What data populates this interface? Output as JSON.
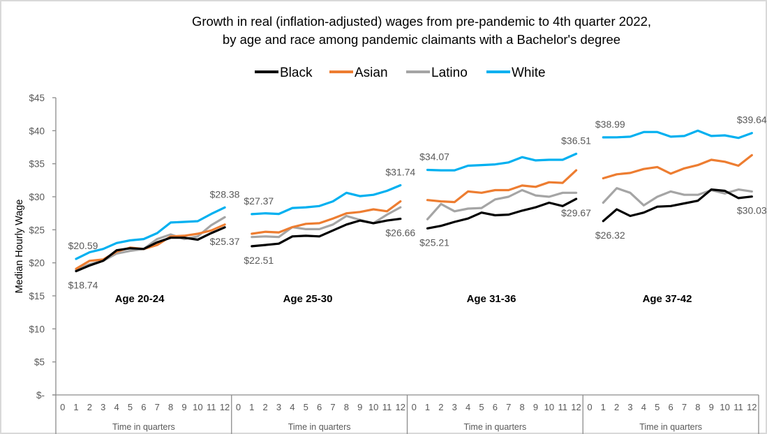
{
  "chart_data": {
    "type": "line",
    "title": "Growth in real (inflation-adjusted) wages from pre-pandemic to 4th quarter 2022,",
    "subtitle": "by age and race among pandemic claimants with a Bachelor's degree",
    "ylabel": "Median Hourly Wage",
    "xlabel": "Time in quarters",
    "ylim": [
      0,
      45
    ],
    "yticks": [
      0,
      5,
      10,
      15,
      20,
      25,
      30,
      35,
      40,
      45
    ],
    "ytick_labels": [
      "$-",
      "$5",
      "$10",
      "$15",
      "$20",
      "$25",
      "$30",
      "$35",
      "$40",
      "$45"
    ],
    "x_categories": [
      "0",
      "1",
      "2",
      "3",
      "4",
      "5",
      "6",
      "7",
      "8",
      "9",
      "10",
      "11",
      "12"
    ],
    "x_data_start_category": 1,
    "grid": false,
    "legend_position": "top",
    "legend": [
      {
        "name": "Black",
        "color": "#000000"
      },
      {
        "name": "Asian",
        "color": "#ED7D31"
      },
      {
        "name": "Latino",
        "color": "#A5A5A5"
      },
      {
        "name": "White",
        "color": "#00B0F0"
      }
    ],
    "panels": [
      {
        "label": "Age 20-24",
        "series": [
          {
            "name": "Black",
            "values": [
              18.74,
              19.6,
              20.3,
              21.9,
              22.2,
              22.1,
              23.1,
              23.8,
              23.8,
              23.5,
              24.5,
              25.37
            ]
          },
          {
            "name": "Asian",
            "values": [
              19.1,
              20.3,
              20.5,
              21.7,
              22.3,
              22.1,
              22.7,
              24.0,
              24.1,
              24.4,
              24.9,
              25.8
            ]
          },
          {
            "name": "Latino",
            "values": [
              18.9,
              19.8,
              20.3,
              21.4,
              21.8,
              22.1,
              23.6,
              24.3,
              23.6,
              24.0,
              25.7,
              26.9
            ]
          },
          {
            "name": "White",
            "values": [
              20.59,
              21.6,
              22.1,
              23.0,
              23.4,
              23.6,
              24.5,
              26.1,
              26.2,
              26.3,
              27.4,
              28.38
            ]
          }
        ],
        "data_labels": [
          {
            "text": "$20.59",
            "series": "White",
            "point": "first",
            "pos": "above"
          },
          {
            "text": "$18.74",
            "series": "Black",
            "point": "first",
            "pos": "below"
          },
          {
            "text": "$28.38",
            "series": "White",
            "point": "last",
            "pos": "above"
          },
          {
            "text": "$25.37",
            "series": "Black",
            "point": "last",
            "pos": "below"
          }
        ]
      },
      {
        "label": "Age 25-30",
        "series": [
          {
            "name": "Black",
            "values": [
              22.51,
              22.7,
              22.9,
              24.0,
              24.1,
              24.0,
              24.9,
              25.8,
              26.4,
              26.0,
              26.4,
              26.66
            ]
          },
          {
            "name": "Asian",
            "values": [
              24.4,
              24.7,
              24.6,
              25.4,
              25.9,
              26.0,
              26.7,
              27.5,
              27.7,
              28.1,
              27.8,
              29.3
            ]
          },
          {
            "name": "Latino",
            "values": [
              23.9,
              24.0,
              23.9,
              25.4,
              25.1,
              25.1,
              25.8,
              27.1,
              26.5,
              26.0,
              27.3,
              28.4
            ]
          },
          {
            "name": "White",
            "values": [
              27.37,
              27.5,
              27.4,
              28.3,
              28.4,
              28.6,
              29.3,
              30.6,
              30.1,
              30.3,
              30.9,
              31.74
            ]
          }
        ],
        "data_labels": [
          {
            "text": "$27.37",
            "series": "White",
            "point": "first",
            "pos": "above"
          },
          {
            "text": "$22.51",
            "series": "Black",
            "point": "first",
            "pos": "below"
          },
          {
            "text": "$31.74",
            "series": "White",
            "point": "last",
            "pos": "above"
          },
          {
            "text": "$26.66",
            "series": "Black",
            "point": "last",
            "pos": "below"
          }
        ]
      },
      {
        "label": "Age 31-36",
        "series": [
          {
            "name": "Black",
            "values": [
              25.21,
              25.6,
              26.2,
              26.7,
              27.6,
              27.2,
              27.3,
              27.9,
              28.4,
              29.1,
              28.6,
              29.67
            ]
          },
          {
            "name": "Asian",
            "values": [
              29.5,
              29.3,
              29.2,
              30.8,
              30.6,
              31.0,
              31.0,
              31.7,
              31.5,
              32.2,
              32.1,
              34.0
            ]
          },
          {
            "name": "Latino",
            "values": [
              26.6,
              28.9,
              27.8,
              28.2,
              28.3,
              29.6,
              30.0,
              31.0,
              30.2,
              30.0,
              30.6,
              30.6
            ]
          },
          {
            "name": "White",
            "values": [
              34.07,
              34.0,
              34.0,
              34.7,
              34.8,
              34.9,
              35.2,
              36.0,
              35.5,
              35.6,
              35.6,
              36.51
            ]
          }
        ],
        "data_labels": [
          {
            "text": "$34.07",
            "series": "White",
            "point": "first",
            "pos": "above"
          },
          {
            "text": "$25.21",
            "series": "Black",
            "point": "first",
            "pos": "below"
          },
          {
            "text": "$36.51",
            "series": "White",
            "point": "last",
            "pos": "above"
          },
          {
            "text": "$29.67",
            "series": "Black",
            "point": "last",
            "pos": "below"
          }
        ]
      },
      {
        "label": "Age 37-42",
        "series": [
          {
            "name": "Black",
            "values": [
              26.32,
              28.1,
              27.1,
              27.6,
              28.5,
              28.6,
              29.0,
              29.4,
              31.1,
              30.9,
              29.8,
              30.03
            ]
          },
          {
            "name": "Asian",
            "values": [
              32.8,
              33.4,
              33.6,
              34.2,
              34.5,
              33.5,
              34.3,
              34.8,
              35.6,
              35.3,
              34.7,
              36.3
            ]
          },
          {
            "name": "Latino",
            "values": [
              29.1,
              31.3,
              30.6,
              28.7,
              30.0,
              30.8,
              30.3,
              30.3,
              31.0,
              30.5,
              31.1,
              30.8
            ]
          },
          {
            "name": "White",
            "values": [
              38.99,
              39.0,
              39.1,
              39.8,
              39.8,
              39.1,
              39.2,
              40.0,
              39.2,
              39.3,
              38.9,
              39.64
            ]
          }
        ],
        "data_labels": [
          {
            "text": "$38.99",
            "series": "White",
            "point": "first",
            "pos": "above"
          },
          {
            "text": "$26.32",
            "series": "Black",
            "point": "first",
            "pos": "below"
          },
          {
            "text": "$39.64",
            "series": "White",
            "point": "last",
            "pos": "above"
          },
          {
            "text": "$30.03",
            "series": "Black",
            "point": "last",
            "pos": "below"
          }
        ]
      }
    ]
  }
}
